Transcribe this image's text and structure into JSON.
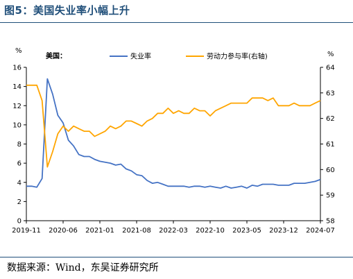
{
  "figure_title": "图5：美国失业率小幅上升",
  "source": "数据来源：Wind，东吴证券研究所",
  "chart_data": {
    "type": "line",
    "panel_label": "美国：",
    "left_unit": "%",
    "right_unit": "%",
    "ylim_left": [
      0,
      16
    ],
    "ylim_right": [
      58,
      64
    ],
    "yticks_left": [
      0,
      2,
      4,
      6,
      8,
      10,
      12,
      14,
      16
    ],
    "yticks_right": [
      58,
      59,
      60,
      61,
      62,
      63,
      64
    ],
    "x_tick_labels": [
      "2019-11",
      "2020-06",
      "2021-01",
      "2021-08",
      "2022-03",
      "2022-10",
      "2023-05",
      "2023-12",
      "2024-07"
    ],
    "x_tick_indices": [
      0,
      7,
      14,
      21,
      28,
      35,
      42,
      49,
      56
    ],
    "grid": false,
    "legend_position": "top",
    "colors": {
      "unemployment": "#4472c4",
      "participation": "#ffa500"
    },
    "series": [
      {
        "name": "失业率",
        "axis": "left",
        "values": [
          3.6,
          3.6,
          3.5,
          4.4,
          14.8,
          13.2,
          11.0,
          10.2,
          8.4,
          7.8,
          6.9,
          6.7,
          6.7,
          6.4,
          6.2,
          6.1,
          6.0,
          5.8,
          5.9,
          5.4,
          5.2,
          4.8,
          4.7,
          4.2,
          3.9,
          4.0,
          3.8,
          3.6,
          3.6,
          3.6,
          3.6,
          3.5,
          3.6,
          3.6,
          3.5,
          3.6,
          3.5,
          3.4,
          3.6,
          3.4,
          3.5,
          3.6,
          3.4,
          3.7,
          3.6,
          3.8,
          3.8,
          3.8,
          3.7,
          3.7,
          3.7,
          3.9,
          3.9,
          3.9,
          4.0,
          4.1,
          4.3
        ]
      },
      {
        "name": "劳动力参与率(右轴)",
        "axis": "right",
        "values": [
          63.3,
          63.3,
          63.3,
          62.7,
          60.1,
          60.7,
          61.4,
          61.7,
          61.5,
          61.7,
          61.6,
          61.5,
          61.5,
          61.3,
          61.4,
          61.5,
          61.7,
          61.6,
          61.7,
          61.9,
          61.9,
          61.8,
          61.7,
          61.9,
          62.0,
          62.2,
          62.2,
          62.4,
          62.2,
          62.3,
          62.2,
          62.2,
          62.4,
          62.3,
          62.3,
          62.1,
          62.3,
          62.4,
          62.5,
          62.6,
          62.6,
          62.6,
          62.6,
          62.8,
          62.8,
          62.8,
          62.7,
          62.8,
          62.5,
          62.5,
          62.5,
          62.6,
          62.5,
          62.5,
          62.5,
          62.6,
          62.7
        ]
      }
    ]
  }
}
